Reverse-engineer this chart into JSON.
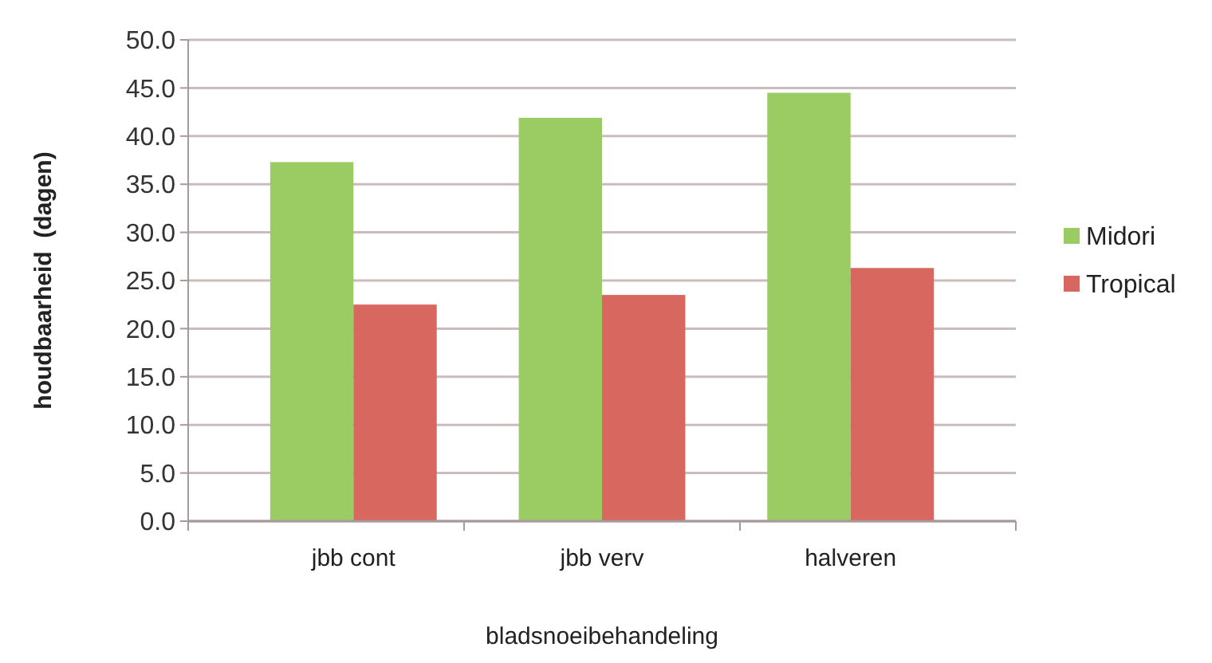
{
  "chart_data": {
    "type": "bar",
    "xlabel": "bladsnoeibehandeling",
    "ylabel": "houdbaarheid  (dagen)",
    "categories": [
      "jbb cont",
      "jbb verv",
      "halveren"
    ],
    "series": [
      {
        "name": "Midori",
        "color": "#9bcb63",
        "values": [
          37.3,
          41.9,
          44.5
        ]
      },
      {
        "name": "Tropical",
        "color": "#d7675f",
        "values": [
          22.5,
          23.5,
          26.3
        ]
      }
    ],
    "ylim": [
      0,
      50
    ],
    "yticks": [
      {
        "value": 0,
        "label": "0.0"
      },
      {
        "value": 5,
        "label": "5.0"
      },
      {
        "value": 10,
        "label": "10.0"
      },
      {
        "value": 15,
        "label": "15.0"
      },
      {
        "value": 20,
        "label": "20.0"
      },
      {
        "value": 25,
        "label": "25.0"
      },
      {
        "value": 30,
        "label": "30.0"
      },
      {
        "value": 35,
        "label": "35.0"
      },
      {
        "value": 40,
        "label": "40.0"
      },
      {
        "value": 45,
        "label": "45.0"
      },
      {
        "value": 50,
        "label": "50.0"
      }
    ],
    "grid": "y",
    "legend": "right"
  }
}
